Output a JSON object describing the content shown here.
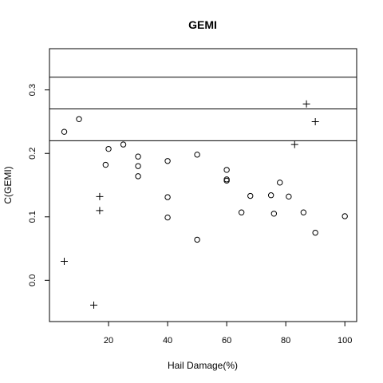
{
  "chart_data": {
    "type": "scatter",
    "title": "GEMI",
    "xlabel": "Hail Damage(%)",
    "ylabel": "C(GEMI)",
    "xlim": [
      0,
      104
    ],
    "ylim": [
      -0.065,
      0.365
    ],
    "x_ticks": [
      20,
      40,
      60,
      80,
      100
    ],
    "x_tick_labels": [
      "20",
      "40",
      "60",
      "80",
      "100"
    ],
    "y_ticks": [
      0.0,
      0.1,
      0.2,
      0.3
    ],
    "y_tick_labels": [
      "0.0",
      "0.1",
      "0.2",
      "0.3"
    ],
    "grid": false,
    "legend": "none",
    "hlines": [
      0.32,
      0.27,
      0.22
    ],
    "series": [
      {
        "marker": "circle",
        "points": [
          [
            5,
            0.234
          ],
          [
            10,
            0.254
          ],
          [
            19,
            0.182
          ],
          [
            20,
            0.207
          ],
          [
            25,
            0.214
          ],
          [
            30,
            0.195
          ],
          [
            30,
            0.18
          ],
          [
            30,
            0.164
          ],
          [
            40,
            0.188
          ],
          [
            40,
            0.131
          ],
          [
            40,
            0.099
          ],
          [
            50,
            0.198
          ],
          [
            50,
            0.064
          ],
          [
            60,
            0.174
          ],
          [
            60,
            0.159
          ],
          [
            60,
            0.157
          ],
          [
            65,
            0.107
          ],
          [
            68,
            0.133
          ],
          [
            75,
            0.134
          ],
          [
            76,
            0.105
          ],
          [
            78,
            0.154
          ],
          [
            81,
            0.132
          ],
          [
            86,
            0.107
          ],
          [
            90,
            0.075
          ],
          [
            100,
            0.101
          ]
        ]
      },
      {
        "marker": "plus",
        "points": [
          [
            5,
            0.03
          ],
          [
            15,
            -0.039
          ],
          [
            17,
            0.132
          ],
          [
            17,
            0.11
          ],
          [
            83,
            0.214
          ],
          [
            87,
            0.278
          ],
          [
            90,
            0.25
          ]
        ]
      }
    ]
  }
}
